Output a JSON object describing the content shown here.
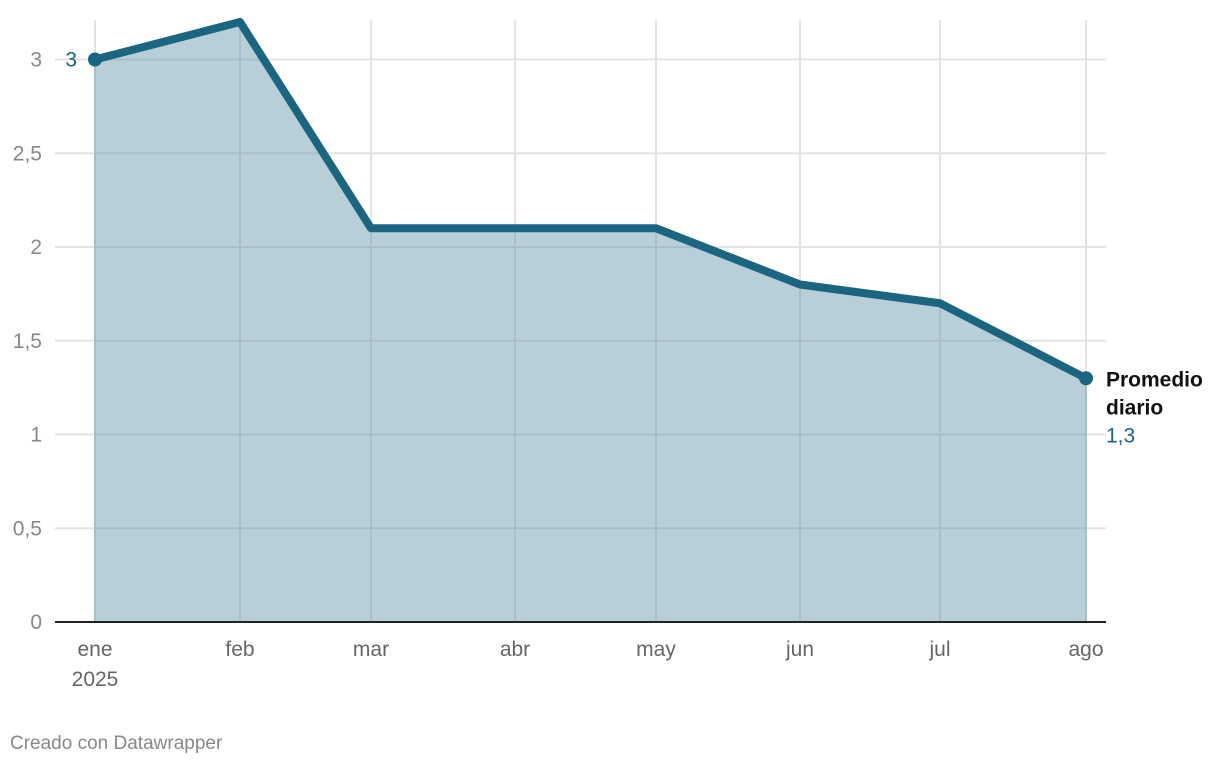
{
  "chart_data": {
    "type": "area",
    "x": [
      "ene",
      "feb",
      "mar",
      "abr",
      "may",
      "jun",
      "jul",
      "ago"
    ],
    "x_sublabel": "2025",
    "series": [
      {
        "name": "Promedio diario",
        "values": [
          3,
          3.2,
          2.1,
          2.1,
          2.1,
          1.8,
          1.7,
          1.3
        ]
      }
    ],
    "ylim": [
      0,
      3.2
    ],
    "yticks": [
      0,
      0.5,
      1,
      1.5,
      2,
      2.5,
      3
    ],
    "ytick_labels": [
      "0",
      "0,5",
      "1",
      "1,5",
      "2",
      "2,5",
      "3"
    ],
    "grid": true,
    "start_label": "3",
    "end_label": {
      "name_line1": "Promedio",
      "name_line2": "diario",
      "value": "1,3"
    },
    "colors": {
      "line": "#1a6580",
      "fill": "#b8cfd8",
      "grid": "#e3e3e3",
      "axis": "#222222"
    }
  },
  "footer": "Creado con Datawrapper"
}
